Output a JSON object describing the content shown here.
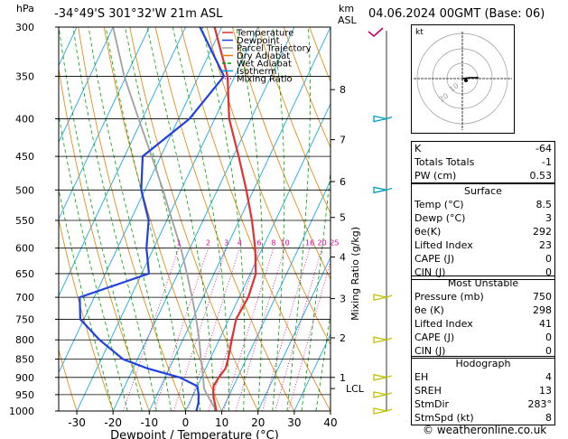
{
  "header": {
    "hpa_label": "hPa",
    "location": "-34°49'S  301°32'W  21m  ASL",
    "km_label": "km",
    "asl_label": "ASL",
    "datetime": "04.06.2024  00GMT  (Base: 06)"
  },
  "legend": [
    "Temperature",
    "Dewpoint",
    "Parcel Trajectory",
    "Dry Adiabat",
    "Wet Adiabat",
    "Isotherm",
    "Mixing Ratio"
  ],
  "colors": {
    "temperature": "#e03030",
    "dewpoint": "#2040e0",
    "parcel": "#a0a0a0",
    "dry_adiabat": "#e08000",
    "wet_adiabat": "#00a000",
    "isotherm": "#00a0e0",
    "mixing_ratio": "#e000a0",
    "wind": "#00a0c0",
    "wind_low": "#c0c000"
  },
  "chart_data": {
    "type": "line",
    "xlabel": "Dewpoint / Temperature (°C)",
    "ylabel": "Mixing Ratio (g/kg)",
    "pressure_ticks": [
      300,
      350,
      400,
      450,
      500,
      550,
      600,
      650,
      700,
      750,
      800,
      850,
      900,
      950,
      1000
    ],
    "temp_ticks": [
      -30,
      -20,
      -10,
      0,
      10,
      20,
      30,
      40
    ],
    "xlim": [
      -35,
      40
    ],
    "ylim": [
      1000,
      300
    ],
    "km_ticks": [
      {
        "km": "8",
        "p": 365
      },
      {
        "km": "7",
        "p": 427
      },
      {
        "km": "6",
        "p": 487
      },
      {
        "km": "5",
        "p": 545
      },
      {
        "km": "4",
        "p": 617
      },
      {
        "km": "3",
        "p": 703
      },
      {
        "km": "2",
        "p": 795
      },
      {
        "km": "1",
        "p": 900
      }
    ],
    "lcl": {
      "label": "LCL",
      "p": 932
    },
    "mixing_ratio_labels": [
      "1",
      "2",
      "3",
      "4",
      "6",
      "8",
      "10",
      "16",
      "20",
      "25"
    ],
    "mixing_ratio_values": [
      1,
      2,
      3,
      4,
      6,
      8,
      10,
      16,
      20,
      25
    ],
    "series": [
      {
        "name": "Temperature",
        "points": [
          [
            1000,
            8.5
          ],
          [
            975,
            7.0
          ],
          [
            950,
            5.5
          ],
          [
            925,
            4.5
          ],
          [
            900,
            4.8
          ],
          [
            875,
            5.5
          ],
          [
            850,
            5.0
          ],
          [
            800,
            3.5
          ],
          [
            750,
            2.0
          ],
          [
            700,
            2.5
          ],
          [
            650,
            1.5
          ],
          [
            600,
            -2.0
          ],
          [
            550,
            -6.5
          ],
          [
            500,
            -12.0
          ],
          [
            450,
            -18.5
          ],
          [
            400,
            -26.0
          ],
          [
            350,
            -32.0
          ],
          [
            300,
            -42.0
          ]
        ]
      },
      {
        "name": "Dewpoint",
        "points": [
          [
            1000,
            3.0
          ],
          [
            975,
            2.5
          ],
          [
            950,
            1.5
          ],
          [
            925,
            0.0
          ],
          [
            900,
            -6.0
          ],
          [
            875,
            -16.0
          ],
          [
            850,
            -24.0
          ],
          [
            800,
            -33.0
          ],
          [
            750,
            -41.0
          ],
          [
            700,
            -44.0
          ],
          [
            650,
            -28.0
          ],
          [
            600,
            -32.0
          ],
          [
            550,
            -35.0
          ],
          [
            500,
            -41.0
          ],
          [
            450,
            -45.0
          ],
          [
            400,
            -37.0
          ],
          [
            350,
            -33.0
          ],
          [
            300,
            -46.0
          ]
        ]
      },
      {
        "name": "Parcel Trajectory",
        "points": [
          [
            1000,
            8.5
          ],
          [
            950,
            3.8
          ],
          [
            932,
            2.2
          ],
          [
            900,
            0.5
          ],
          [
            850,
            -2.5
          ],
          [
            800,
            -5.5
          ],
          [
            750,
            -9.0
          ],
          [
            700,
            -13.0
          ],
          [
            650,
            -17.5
          ],
          [
            600,
            -22.5
          ],
          [
            550,
            -28.5
          ],
          [
            500,
            -35.0
          ],
          [
            450,
            -42.5
          ],
          [
            400,
            -51.0
          ],
          [
            350,
            -60.5
          ],
          [
            300,
            -70.0
          ]
        ]
      }
    ]
  },
  "hodograph": {
    "label": "kt",
    "ring_labels": [
      "10",
      "20"
    ]
  },
  "indices": [
    {
      "k": "K",
      "v": "-64"
    },
    {
      "k": "Totals Totals",
      "v": "-1"
    },
    {
      "k": "PW (cm)",
      "v": "0.53"
    }
  ],
  "surface": {
    "title": "Surface",
    "rows": [
      {
        "k": "Temp (°C)",
        "v": "8.5"
      },
      {
        "k": "Dewp (°C)",
        "v": "3"
      },
      {
        "k": "θe(K)",
        "v": "292"
      },
      {
        "k": "Lifted Index",
        "v": "23"
      },
      {
        "k": "CAPE (J)",
        "v": "0"
      },
      {
        "k": "CIN (J)",
        "v": "0"
      }
    ]
  },
  "most_unstable": {
    "title": "Most Unstable",
    "rows": [
      {
        "k": "Pressure (mb)",
        "v": "750"
      },
      {
        "k": "θe (K)",
        "v": "298"
      },
      {
        "k": "Lifted Index",
        "v": "41"
      },
      {
        "k": "CAPE (J)",
        "v": "0"
      },
      {
        "k": "CIN (J)",
        "v": "0"
      }
    ]
  },
  "hodograph_table": {
    "title": "Hodograph",
    "rows": [
      {
        "k": "EH",
        "v": "4"
      },
      {
        "k": "SREH",
        "v": "13"
      },
      {
        "k": "StmDir",
        "v": "283°"
      },
      {
        "k": "StmSpd (kt)",
        "v": "8"
      }
    ]
  },
  "footer": "© weatheronline.co.uk"
}
